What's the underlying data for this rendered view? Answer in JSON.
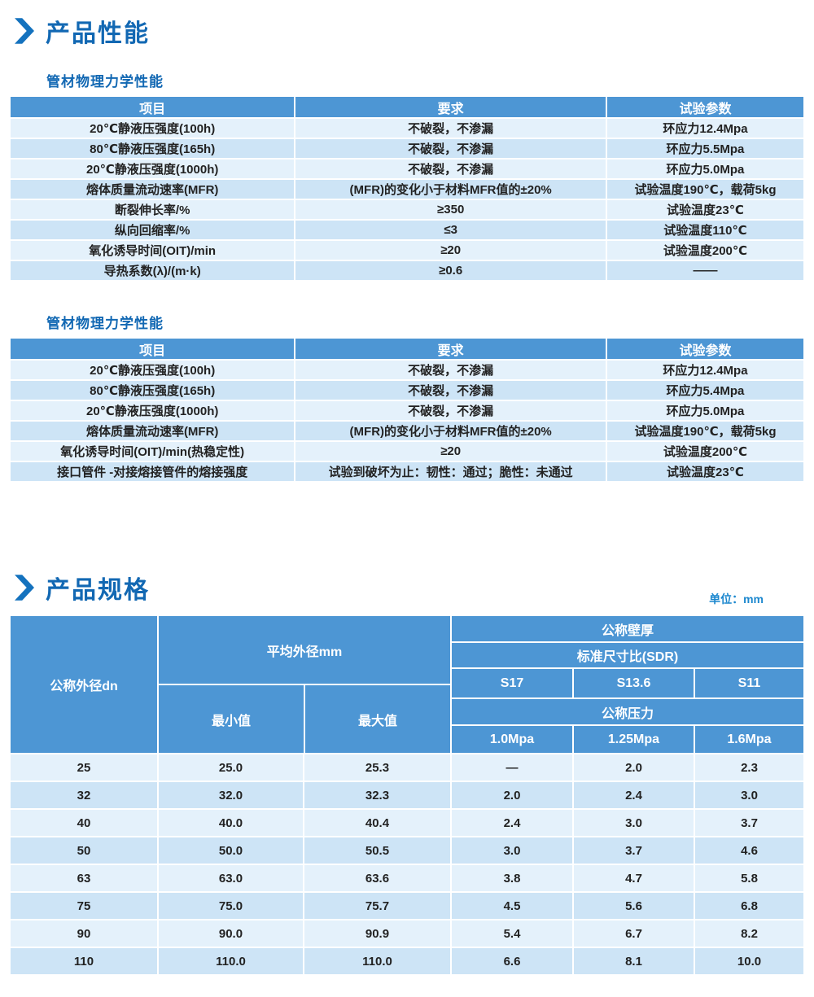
{
  "colors": {
    "title_blue": "#1268B3",
    "chevron_blue": "#1472BE",
    "table_header_blue": "#4D96D4",
    "row_light": "#E4F1FB",
    "row_dark": "#CDE4F6",
    "unit_blue": "#1B87CE"
  },
  "section1": {
    "title": "产品性能",
    "table1": {
      "subtitle": "管材物理力学性能",
      "headers": [
        "项目",
        "要求",
        "试验参数"
      ],
      "rows": [
        [
          "20℃静液压强度(100h)",
          "不破裂，不渗漏",
          "环应力12.4Mpa"
        ],
        [
          "80℃静液压强度(165h)",
          "不破裂，不渗漏",
          "环应力5.5Mpa"
        ],
        [
          "20℃静液压强度(1000h)",
          "不破裂，不渗漏",
          "环应力5.0Mpa"
        ],
        [
          "熔体质量流动速率(MFR)",
          "(MFR)的变化小于材料MFR值的±20%",
          "试验温度190℃，载荷5kg"
        ],
        [
          "断裂伸长率/%",
          "≥350",
          "试验温度23℃"
        ],
        [
          "纵向回缩率/%",
          "≤3",
          "试验温度110℃"
        ],
        [
          "氧化诱导时间(OIT)/min",
          "≥20",
          "试验温度200℃"
        ],
        [
          "导热系数(λ)/(m·k)",
          "≥0.6",
          "——"
        ]
      ]
    },
    "table2": {
      "subtitle": "管材物理力学性能",
      "headers": [
        "项目",
        "要求",
        "试验参数"
      ],
      "rows": [
        [
          "20℃静液压强度(100h)",
          "不破裂，不渗漏",
          "环应力12.4Mpa"
        ],
        [
          "80℃静液压强度(165h)",
          "不破裂，不渗漏",
          "环应力5.4Mpa"
        ],
        [
          "20℃静液压强度(1000h)",
          "不破裂，不渗漏",
          "环应力5.0Mpa"
        ],
        [
          "熔体质量流动速率(MFR)",
          "(MFR)的变化小于材料MFR值的±20%",
          "试验温度190℃，载荷5kg"
        ],
        [
          "氧化诱导时间(OIT)/min(热稳定性)",
          "≥20",
          "试验温度200℃"
        ],
        [
          "接口管件 -对接熔接管件的熔接强度",
          "试验到破坏为止：韧性：通过；脆性：未通过",
          "试验温度23℃"
        ]
      ]
    }
  },
  "section2": {
    "title": "产品规格",
    "unit_label": "单位：mm",
    "spec_table": {
      "col_dn": "公称外径dn",
      "avg_od": "平均外径mm",
      "min_label": "最小值",
      "max_label": "最大值",
      "wall_label": "公称壁厚",
      "sdr_label": "标准尺寸比(SDR)",
      "sdr_cols": [
        "S17",
        "S13.6",
        "S11"
      ],
      "pressure_label": "公称压力",
      "pressure_cols": [
        "1.0Mpa",
        "1.25Mpa",
        "1.6Mpa"
      ],
      "rows": [
        [
          "25",
          "25.0",
          "25.3",
          "—",
          "2.0",
          "2.3"
        ],
        [
          "32",
          "32.0",
          "32.3",
          "2.0",
          "2.4",
          "3.0"
        ],
        [
          "40",
          "40.0",
          "40.4",
          "2.4",
          "3.0",
          "3.7"
        ],
        [
          "50",
          "50.0",
          "50.5",
          "3.0",
          "3.7",
          "4.6"
        ],
        [
          "63",
          "63.0",
          "63.6",
          "3.8",
          "4.7",
          "5.8"
        ],
        [
          "75",
          "75.0",
          "75.7",
          "4.5",
          "5.6",
          "6.8"
        ],
        [
          "90",
          "90.0",
          "90.9",
          "5.4",
          "6.7",
          "8.2"
        ],
        [
          "110",
          "110.0",
          "110.0",
          "6.6",
          "8.1",
          "10.0"
        ]
      ]
    }
  }
}
